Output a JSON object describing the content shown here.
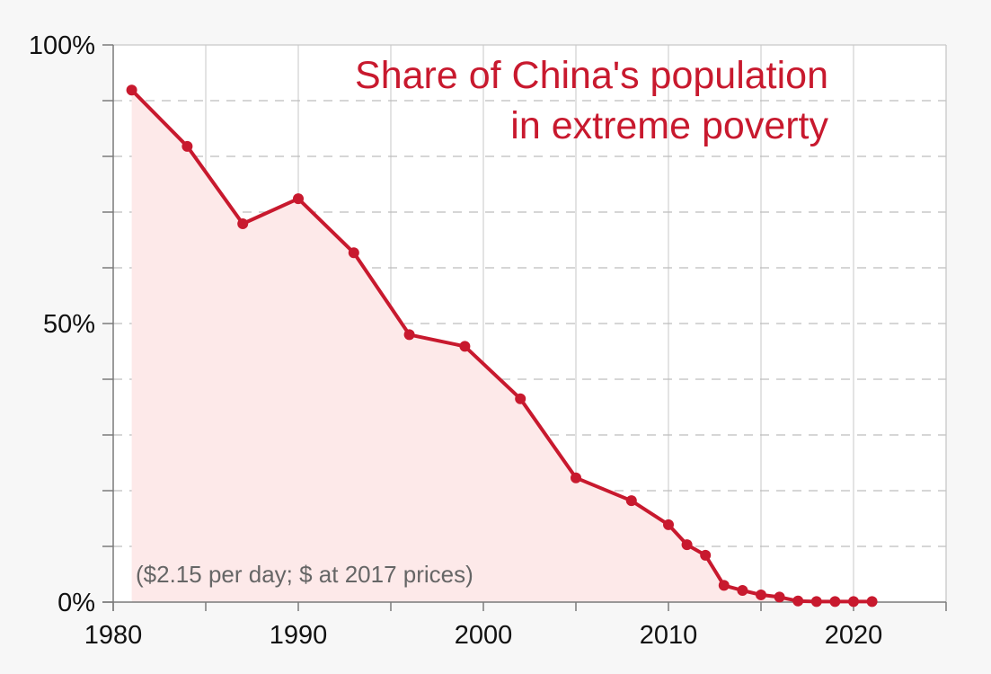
{
  "chart_data": {
    "type": "line",
    "title": [
      "Share of China's population",
      "in extreme poverty"
    ],
    "note": "($2.15 per day; $ at 2017 prices)",
    "xlabel": "",
    "ylabel": "",
    "xlim": [
      1980,
      2025
    ],
    "ylim": [
      0,
      100
    ],
    "x_ticks": [
      1980,
      1990,
      2000,
      2010,
      2020
    ],
    "y_ticks": [
      0,
      50,
      100
    ],
    "y_tick_labels": [
      "0%",
      "50%",
      "100%"
    ],
    "grid": true,
    "fill_area": true,
    "colors": {
      "line": "#c8192e",
      "fill": "#fde9e9",
      "title": "#c8192e",
      "note": "#666666"
    },
    "series": [
      {
        "x": [
          1981,
          1984,
          1987,
          1990,
          1993,
          1996,
          1999,
          2002,
          2005,
          2008,
          2010,
          2011,
          2012,
          2013,
          2014,
          2015,
          2016,
          2017,
          2018,
          2019,
          2020,
          2021
        ],
        "values": [
          91.9,
          81.8,
          67.9,
          72.4,
          62.7,
          48.0,
          45.9,
          36.5,
          22.3,
          18.2,
          13.9,
          10.3,
          8.4,
          3.0,
          2.1,
          1.3,
          0.9,
          0.2,
          0.1,
          0.1,
          0.1,
          0.1
        ]
      }
    ]
  }
}
